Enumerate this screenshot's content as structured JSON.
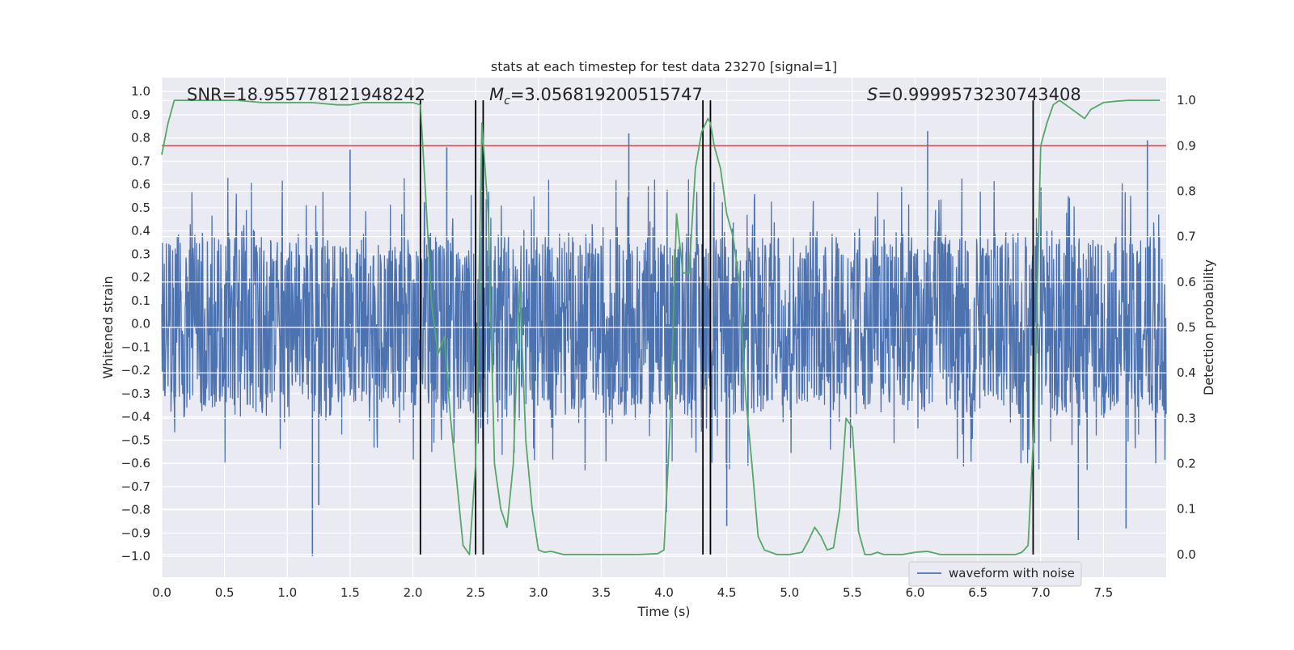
{
  "chart_data": {
    "type": "line",
    "title": "stats at each timestep for test data 23270 [signal=1]",
    "xlabel": "Time (s)",
    "ylabel_left": "Whitened strain",
    "ylabel_right": "Detection probability",
    "xlim": [
      0.0,
      8.0
    ],
    "ylim_left": [
      -1.09,
      1.06
    ],
    "ylim_right": [
      -0.05,
      1.05
    ],
    "x_ticks": [
      "0.0",
      "0.5",
      "1.0",
      "1.5",
      "2.0",
      "2.5",
      "3.0",
      "3.5",
      "4.0",
      "4.5",
      "5.0",
      "5.5",
      "6.0",
      "6.5",
      "7.0",
      "7.5"
    ],
    "y_left_ticks": [
      "1.0",
      "0.9",
      "0.8",
      "0.7",
      "0.6",
      "0.5",
      "0.4",
      "0.3",
      "0.2",
      "0.1",
      "0.0",
      "−0.1",
      "−0.2",
      "−0.3",
      "−0.4",
      "−0.5",
      "−0.6",
      "−0.7",
      "−0.8",
      "−0.9",
      "−1.0"
    ],
    "y_right_ticks": [
      "1.0",
      "0.9",
      "0.8",
      "0.7",
      "0.6",
      "0.5",
      "0.4",
      "0.3",
      "0.2",
      "0.1",
      "0.0"
    ],
    "grid": true,
    "legend_position": "lower-right",
    "annotations": {
      "snr": "SNR=18.955778121948242",
      "mc_symbol": "M",
      "mc_sub": "c",
      "mc_value": "=3.056819200515747",
      "s_symbol": "S",
      "s_value": "=0.9999573230743408"
    },
    "series": [
      {
        "name": "waveform with noise",
        "axis": "left",
        "color": "#4c72b0",
        "kind": "dense noise waveform (approx. ±0.35 core, spikes to +0.82 / −1.0)",
        "core_amplitude": 0.35,
        "spikes": [
          {
            "x": 1.2,
            "y": -1.0
          },
          {
            "x": 1.25,
            "y": -0.78
          },
          {
            "x": 1.5,
            "y": 0.75
          },
          {
            "x": 2.27,
            "y": 0.76
          },
          {
            "x": 2.55,
            "y": 0.77
          },
          {
            "x": 3.72,
            "y": 0.82
          },
          {
            "x": 4.02,
            "y": -0.81
          },
          {
            "x": 4.5,
            "y": -0.87
          },
          {
            "x": 6.1,
            "y": 0.83
          },
          {
            "x": 7.3,
            "y": -0.93
          },
          {
            "x": 7.68,
            "y": -0.88
          },
          {
            "x": 7.85,
            "y": 0.79
          }
        ]
      },
      {
        "axis": "right",
        "color": "#55a868",
        "x": [
          0.0,
          0.05,
          0.1,
          0.2,
          0.4,
          0.6,
          0.8,
          1.0,
          1.2,
          1.4,
          1.5,
          1.6,
          1.8,
          2.0,
          2.06,
          2.1,
          2.15,
          2.2,
          2.25,
          2.3,
          2.4,
          2.45,
          2.5,
          2.55,
          2.6,
          2.65,
          2.7,
          2.75,
          2.8,
          2.85,
          2.9,
          2.95,
          3.0,
          3.05,
          3.1,
          3.2,
          3.5,
          3.8,
          3.95,
          4.0,
          4.05,
          4.1,
          4.15,
          4.2,
          4.25,
          4.3,
          4.35,
          4.37,
          4.4,
          4.45,
          4.5,
          4.55,
          4.6,
          4.65,
          4.7,
          4.75,
          4.8,
          4.85,
          4.9,
          5.0,
          5.1,
          5.15,
          5.2,
          5.25,
          5.3,
          5.35,
          5.4,
          5.45,
          5.5,
          5.55,
          5.6,
          5.65,
          5.7,
          5.75,
          5.8,
          5.9,
          6.0,
          6.1,
          6.2,
          6.4,
          6.6,
          6.8,
          6.85,
          6.9,
          6.95,
          7.0,
          7.05,
          7.1,
          7.15,
          7.2,
          7.25,
          7.3,
          7.35,
          7.4,
          7.5,
          7.6,
          7.7,
          7.8,
          7.95
        ],
        "y": [
          0.88,
          0.95,
          1.0,
          1.0,
          1.0,
          1.0,
          0.995,
          0.995,
          0.995,
          0.99,
          0.99,
          0.995,
          0.995,
          0.995,
          0.99,
          0.8,
          0.55,
          0.44,
          0.48,
          0.3,
          0.02,
          0.0,
          0.2,
          0.95,
          0.75,
          0.2,
          0.1,
          0.06,
          0.2,
          0.6,
          0.25,
          0.1,
          0.01,
          0.005,
          0.007,
          0.0,
          0.0,
          0.0,
          0.002,
          0.01,
          0.3,
          0.75,
          0.62,
          0.62,
          0.85,
          0.93,
          0.96,
          0.95,
          0.9,
          0.85,
          0.75,
          0.7,
          0.6,
          0.35,
          0.2,
          0.04,
          0.01,
          0.005,
          0.0,
          0.0,
          0.005,
          0.03,
          0.06,
          0.04,
          0.01,
          0.015,
          0.1,
          0.3,
          0.28,
          0.05,
          0.0,
          0.0,
          0.005,
          0.0,
          0.0,
          0.0,
          0.005,
          0.007,
          0.0,
          0.0,
          0.0,
          0.0,
          0.005,
          0.02,
          0.3,
          0.9,
          0.95,
          0.99,
          1.0,
          0.99,
          0.98,
          0.97,
          0.96,
          0.98,
          0.995,
          0.998,
          1.0,
          1.0,
          1.0
        ]
      }
    ],
    "threshold": {
      "axis": "right",
      "y": 0.9,
      "color": "#c44e52"
    },
    "vlines": [
      2.06,
      2.5,
      2.56,
      4.31,
      4.37,
      6.94
    ],
    "vline_color": "#000000"
  }
}
